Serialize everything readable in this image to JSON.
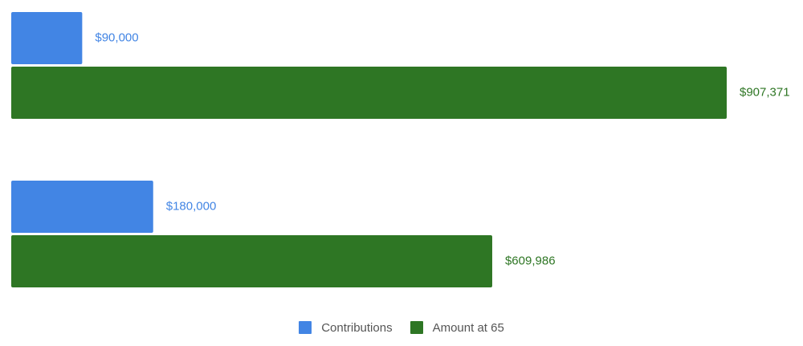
{
  "chart_data": {
    "type": "bar",
    "orientation": "horizontal",
    "categories": [
      "",
      ""
    ],
    "series": [
      {
        "name": "Contributions",
        "color": "#4285e4",
        "values": [
          90000,
          180000
        ],
        "labels": [
          "$90,000",
          "$180,000"
        ]
      },
      {
        "name": "Amount at 65",
        "color": "#2e7624",
        "values": [
          907371,
          609986
        ],
        "labels": [
          "$907,371",
          "$609,986"
        ]
      }
    ],
    "title": "",
    "xlabel": "",
    "ylabel": "",
    "xlim": [
      0,
      907371
    ],
    "grid": false,
    "legend": "bottom"
  }
}
